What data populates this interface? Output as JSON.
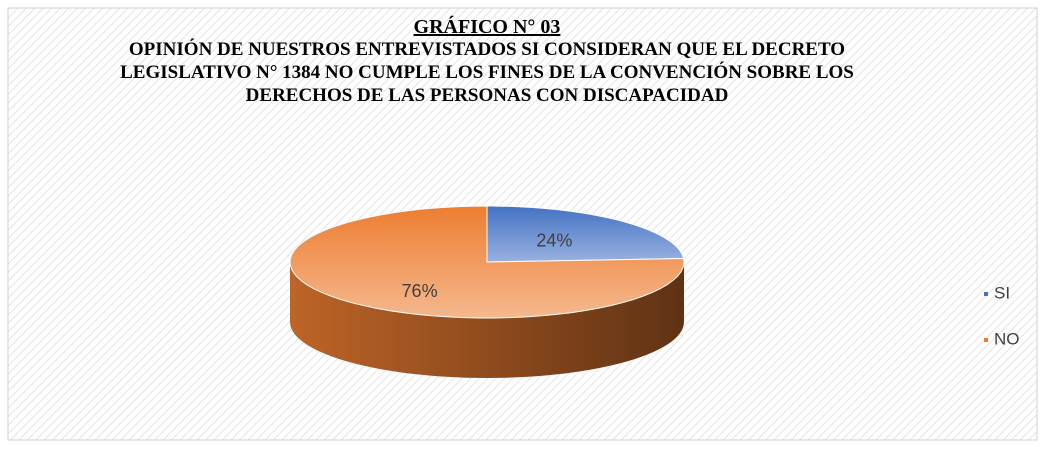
{
  "chart_data": {
    "type": "pie3d",
    "title": "GRÁFICO N° 03",
    "subtitle": "OPINIÓN DE NUESTROS ENTREVISTADOS SI CONSIDERAN QUE EL DECRETO LEGISLATIVO N° 1384 NO CUMPLE LOS FINES DE LA CONVENCIÓN SOBRE LOS DERECHOS DE LAS PERSONAS CON DISCAPACIDAD",
    "categories": [
      "SI",
      "NO"
    ],
    "values": [
      24,
      76
    ],
    "value_labels": [
      "24%",
      "76%"
    ],
    "colors": [
      "#4472c4",
      "#ed7d31"
    ],
    "legend": "right"
  }
}
